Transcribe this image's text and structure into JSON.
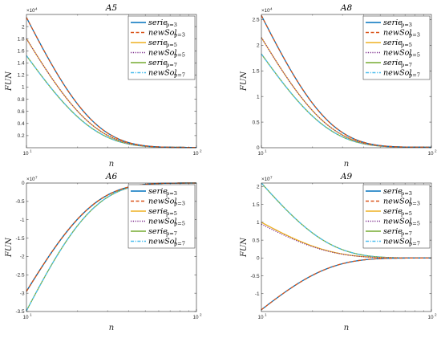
{
  "legend_entries": [
    {
      "name": "serie",
      "sub": "p=3",
      "color": "#0072BD",
      "dash": "solid"
    },
    {
      "name": "newSol",
      "sub": "p=3",
      "color": "#D95319",
      "dash": "dashed"
    },
    {
      "name": "serie",
      "sub": "p=5",
      "color": "#EDB120",
      "dash": "solid"
    },
    {
      "name": "newSol",
      "sub": "p=5",
      "color": "#7E2F8E",
      "dash": "dotted"
    },
    {
      "name": "serie",
      "sub": "p=7",
      "color": "#77AC30",
      "dash": "solid"
    },
    {
      "name": "newSol",
      "sub": "p=7",
      "color": "#4DBEEE",
      "dash": "dashdot"
    }
  ],
  "chart_data": [
    {
      "type": "line",
      "title": "A5",
      "xlabel": "n",
      "ylabel": "FUN",
      "xscale": "log",
      "xlim": [
        10,
        100
      ],
      "x_tick_labels": [
        "10",
        "10"
      ],
      "x_tick_exponents": [
        "1",
        "2"
      ],
      "ylim": [
        0.0,
        0.00022
      ],
      "y_exponent_label": "×10",
      "y_exponent": "-4",
      "y_ticks": [
        0.2,
        0.4,
        0.6,
        0.8,
        1,
        1.2,
        1.4,
        1.6,
        1.8,
        2
      ],
      "y_tick_labels": [
        "0.2",
        "0.4",
        "0.6",
        "0.8",
        "1",
        "1.2",
        "1.4",
        "1.6",
        "1.8",
        "2"
      ],
      "legend_position": "top-right",
      "grid": false,
      "series": [
        {
          "legend_index": 0,
          "start": 0.000215,
          "end": 5e-07
        },
        {
          "legend_index": 1,
          "start": 0.000215,
          "end": 5e-07
        },
        {
          "legend_index": 2,
          "start": 0.00018,
          "end": 5e-07
        },
        {
          "legend_index": 3,
          "start": 0.00018,
          "end": 5e-07
        },
        {
          "legend_index": 4,
          "start": 0.000152,
          "end": 5e-07
        },
        {
          "legend_index": 5,
          "start": 0.000152,
          "end": 5e-07
        }
      ]
    },
    {
      "type": "line",
      "title": "A8",
      "xlabel": "n",
      "ylabel": "FUN",
      "xscale": "log",
      "xlim": [
        10,
        100
      ],
      "x_tick_labels": [
        "10",
        "10"
      ],
      "x_tick_exponents": [
        "1",
        "2"
      ],
      "ylim": [
        0.0,
        0.00026
      ],
      "y_exponent_label": "×10",
      "y_exponent": "-4",
      "y_ticks": [
        0,
        0.5,
        1,
        1.5,
        2,
        2.5
      ],
      "y_tick_labels": [
        "0",
        "0.5",
        "1",
        "1.5",
        "2",
        "2.5"
      ],
      "legend_position": "top-right",
      "grid": false,
      "series": [
        {
          "legend_index": 0,
          "start": 0.000258,
          "end": 1e-06
        },
        {
          "legend_index": 1,
          "start": 0.000258,
          "end": 1e-06
        },
        {
          "legend_index": 2,
          "start": 0.000215,
          "end": 1e-06
        },
        {
          "legend_index": 3,
          "start": 0.000215,
          "end": 1e-06
        },
        {
          "legend_index": 4,
          "start": 0.000183,
          "end": 1e-06
        },
        {
          "legend_index": 5,
          "start": 0.000183,
          "end": 1e-06
        }
      ]
    },
    {
      "type": "line",
      "title": "A6",
      "xlabel": "n",
      "ylabel": "FUN",
      "xscale": "log",
      "xlim": [
        10,
        100
      ],
      "x_tick_labels": [
        "10",
        "10"
      ],
      "x_tick_exponents": [
        "1",
        "2"
      ],
      "ylim": [
        -3.5e-07,
        0.0
      ],
      "y_exponent_label": "×10",
      "y_exponent": "-7",
      "y_ticks": [
        -3.5,
        -3,
        -2.5,
        -2,
        -1.5,
        -1,
        -0.5,
        0
      ],
      "y_tick_labels": [
        "-3.5",
        "-3",
        "-2.5",
        "-2",
        "-1.5",
        "-1",
        "-0.5",
        "0"
      ],
      "legend_position": "right",
      "grid": false,
      "series": [
        {
          "legend_index": 0,
          "start": -2.95e-07,
          "end": 0.0
        },
        {
          "legend_index": 1,
          "start": -2.95e-07,
          "end": 0.0
        },
        {
          "legend_index": 2,
          "start": -2.95e-07,
          "end": 0.0
        },
        {
          "legend_index": 3,
          "start": -2.95e-07,
          "end": 0.0
        },
        {
          "legend_index": 4,
          "start": -3.48e-07,
          "end": 0.0
        },
        {
          "legend_index": 5,
          "start": -3.48e-07,
          "end": 0.0
        }
      ]
    },
    {
      "type": "line",
      "title": "A9",
      "xlabel": "n",
      "ylabel": "FUN",
      "xscale": "log",
      "xlim": [
        10,
        100
      ],
      "x_tick_labels": [
        "10",
        "10"
      ],
      "x_tick_exponents": [
        "1",
        "2"
      ],
      "ylim": [
        -1.5e-07,
        2.1e-07
      ],
      "y_exponent_label": "×10",
      "y_exponent": "-7",
      "y_ticks": [
        -1,
        -0.5,
        0,
        0.5,
        1,
        1.5,
        2
      ],
      "y_tick_labels": [
        "-1",
        "-0.5",
        "0",
        "0.5",
        "1",
        "1.5",
        "2"
      ],
      "legend_position": "top-right",
      "grid": false,
      "series": [
        {
          "legend_index": 0,
          "start": -1.45e-07,
          "end": 0.0
        },
        {
          "legend_index": 1,
          "start": -1.45e-07,
          "end": 0.0
        },
        {
          "legend_index": 2,
          "start": 1e-07,
          "end": 0.0
        },
        {
          "legend_index": 3,
          "start": 9.5e-08,
          "end": 0.0
        },
        {
          "legend_index": 4,
          "start": 2.1e-07,
          "end": 0.0
        },
        {
          "legend_index": 5,
          "start": 2.1e-07,
          "end": 0.0
        }
      ]
    }
  ]
}
